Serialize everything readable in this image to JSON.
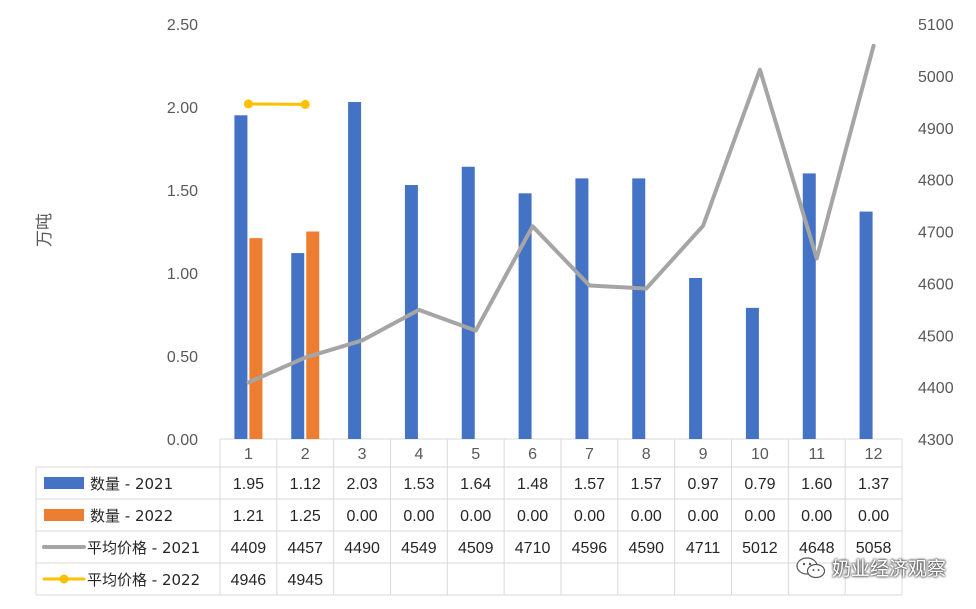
{
  "chart_data": {
    "type": "bar",
    "categories": [
      "1",
      "2",
      "3",
      "4",
      "5",
      "6",
      "7",
      "8",
      "9",
      "10",
      "11",
      "12"
    ],
    "ylabel": "万吨",
    "ylim": [
      0,
      2.5
    ],
    "y_ticks": [
      "0.00",
      "0.50",
      "1.00",
      "1.50",
      "2.00",
      "2.50"
    ],
    "y2lim": [
      4300,
      5100
    ],
    "y2_ticks": [
      "4300",
      "4400",
      "4500",
      "4600",
      "4700",
      "4800",
      "4900",
      "5000",
      "5100"
    ],
    "grid": false,
    "legend_placement": "data-table",
    "series": [
      {
        "name": "数量 - 2021",
        "type": "bar",
        "axis": "left",
        "color": "#4472C4",
        "values": [
          1.95,
          1.12,
          2.03,
          1.53,
          1.64,
          1.48,
          1.57,
          1.57,
          0.97,
          0.79,
          1.6,
          1.37
        ],
        "labels": [
          "1.95",
          "1.12",
          "2.03",
          "1.53",
          "1.64",
          "1.48",
          "1.57",
          "1.57",
          "0.97",
          "0.79",
          "1.60",
          "1.37"
        ]
      },
      {
        "name": "数量 - 2022",
        "type": "bar",
        "axis": "left",
        "color": "#ED7D31",
        "values": [
          1.21,
          1.25,
          0,
          0,
          0,
          0,
          0,
          0,
          0,
          0,
          0,
          0
        ],
        "labels": [
          "1.21",
          "1.25",
          "0.00",
          "0.00",
          "0.00",
          "0.00",
          "0.00",
          "0.00",
          "0.00",
          "0.00",
          "0.00",
          "0.00"
        ]
      },
      {
        "name": "平均价格 - 2021",
        "type": "line",
        "axis": "right",
        "color": "#A5A5A5",
        "values": [
          4409,
          4457,
          4490,
          4549,
          4509,
          4710,
          4596,
          4590,
          4711,
          5012,
          4648,
          5058
        ],
        "labels": [
          "4409",
          "4457",
          "4490",
          "4549",
          "4509",
          "4710",
          "4596",
          "4590",
          "4711",
          "5012",
          "4648",
          "5058"
        ]
      },
      {
        "name": "平均价格 - 2022",
        "type": "line",
        "axis": "right",
        "color": "#FFC000",
        "markers": true,
        "values": [
          4946,
          4945,
          null,
          null,
          null,
          null,
          null,
          null,
          null,
          null,
          null,
          null
        ],
        "labels": [
          "4946",
          "4945",
          "",
          "",
          "",
          "",
          "",
          "",
          "",
          "",
          "",
          ""
        ]
      }
    ]
  },
  "watermark": {
    "text": "奶业经济观察"
  }
}
